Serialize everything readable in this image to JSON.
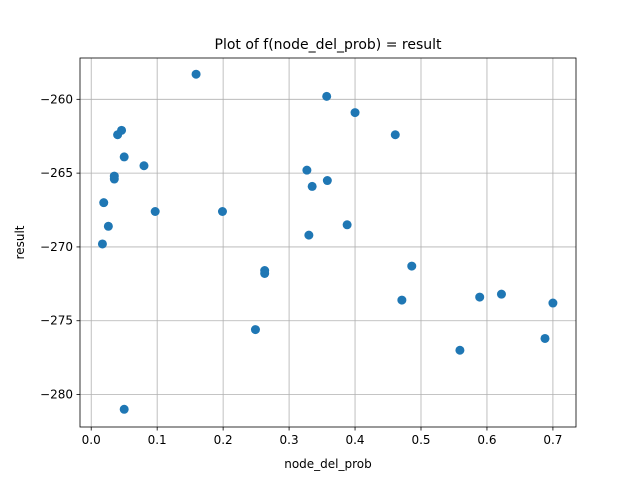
{
  "chart_data": {
    "type": "scatter",
    "title": "Plot of f(node_del_prob) = result",
    "xlabel": "node_del_prob",
    "ylabel": "result",
    "xlim": [
      -0.017,
      0.735
    ],
    "ylim": [
      -282.2,
      -257.2
    ],
    "xticks": [
      0.0,
      0.1,
      0.2,
      0.3,
      0.4,
      0.5,
      0.6,
      0.7
    ],
    "xtick_labels": [
      "0.0",
      "0.1",
      "0.2",
      "0.3",
      "0.4",
      "0.5",
      "0.6",
      "0.7"
    ],
    "yticks": [
      -280,
      -275,
      -270,
      -265,
      -260
    ],
    "ytick_labels": [
      "−280",
      "−275",
      "−270",
      "−265",
      "−260"
    ],
    "grid": true,
    "marker_color": "#1f77b4",
    "points": [
      {
        "x": 0.159,
        "y": -258.3
      },
      {
        "x": 0.357,
        "y": -259.8
      },
      {
        "x": 0.4,
        "y": -260.9
      },
      {
        "x": 0.461,
        "y": -262.4
      },
      {
        "x": 0.046,
        "y": -262.1
      },
      {
        "x": 0.04,
        "y": -262.4
      },
      {
        "x": 0.05,
        "y": -263.9
      },
      {
        "x": 0.08,
        "y": -264.5
      },
      {
        "x": 0.327,
        "y": -264.8
      },
      {
        "x": 0.035,
        "y": -265.2
      },
      {
        "x": 0.035,
        "y": -265.4
      },
      {
        "x": 0.358,
        "y": -265.5
      },
      {
        "x": 0.335,
        "y": -265.9
      },
      {
        "x": 0.019,
        "y": -267.0
      },
      {
        "x": 0.097,
        "y": -267.6
      },
      {
        "x": 0.199,
        "y": -267.6
      },
      {
        "x": 0.026,
        "y": -268.6
      },
      {
        "x": 0.388,
        "y": -268.5
      },
      {
        "x": 0.33,
        "y": -269.2
      },
      {
        "x": 0.017,
        "y": -269.8
      },
      {
        "x": 0.486,
        "y": -271.3
      },
      {
        "x": 0.263,
        "y": -271.6
      },
      {
        "x": 0.263,
        "y": -271.8
      },
      {
        "x": 0.622,
        "y": -273.2
      },
      {
        "x": 0.589,
        "y": -273.4
      },
      {
        "x": 0.471,
        "y": -273.6
      },
      {
        "x": 0.7,
        "y": -273.8
      },
      {
        "x": 0.249,
        "y": -275.6
      },
      {
        "x": 0.688,
        "y": -276.2
      },
      {
        "x": 0.559,
        "y": -277.0
      },
      {
        "x": 0.05,
        "y": -281.0
      }
    ]
  }
}
